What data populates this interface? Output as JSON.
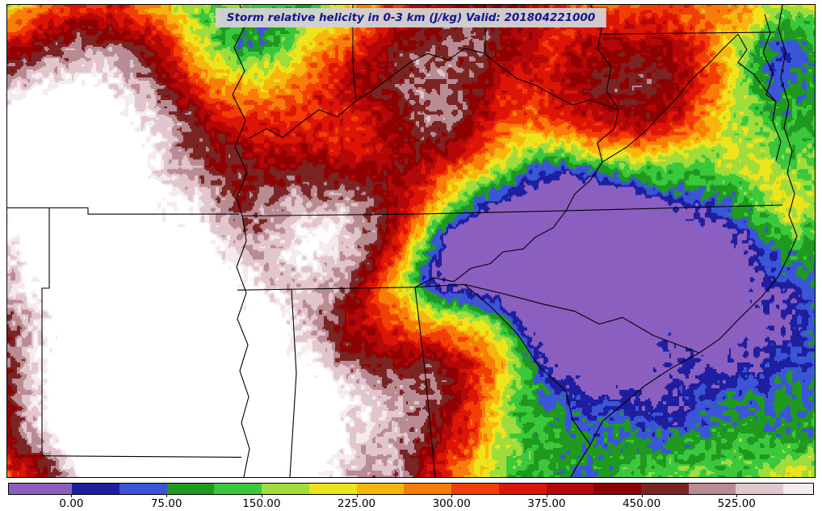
{
  "title": {
    "text": "Storm relative helicity in 0-3 km (J/kg) Valid: 201804221000"
  },
  "chart_data": {
    "type": "heatmap",
    "title": "Storm relative helicity in 0-3 km (J/kg)",
    "valid_time": "201804221000",
    "units": "J/kg",
    "variable": "storm-relative helicity 0-3 km",
    "region": "Southeastern United States: Missouri/Arkansas east to the Atlantic coast, Ohio Valley south to Alabama/Georgia, with state boundaries and coastline overlaid",
    "colorbar": {
      "orientation": "horizontal",
      "min": -50,
      "max": 586,
      "over_color": "#FFFFFF",
      "tick_values": [
        0,
        75,
        150,
        225,
        300,
        375,
        450,
        525
      ],
      "ticks": [
        {
          "value": 0,
          "label": "0.00"
        },
        {
          "value": 75,
          "label": "75.00"
        },
        {
          "value": 150,
          "label": "150.00"
        },
        {
          "value": 225,
          "label": "225.00"
        },
        {
          "value": 300,
          "label": "300.00"
        },
        {
          "value": 375,
          "label": "375.00"
        },
        {
          "value": 450,
          "label": "450.00"
        },
        {
          "value": 525,
          "label": "525.00"
        }
      ],
      "stops": [
        {
          "min": -50,
          "max": 0,
          "color": "#8A5FC0"
        },
        {
          "min": 0,
          "max": 37.5,
          "color": "#1E1EA0"
        },
        {
          "min": 37.5,
          "max": 75,
          "color": "#3A55D6"
        },
        {
          "min": 75,
          "max": 112.5,
          "color": "#1F9A1F"
        },
        {
          "min": 112.5,
          "max": 150,
          "color": "#3CC83C"
        },
        {
          "min": 150,
          "max": 187.5,
          "color": "#A0DC3C"
        },
        {
          "min": 187.5,
          "max": 225,
          "color": "#EEE41C"
        },
        {
          "min": 225,
          "max": 262.5,
          "color": "#F6B60E"
        },
        {
          "min": 262.5,
          "max": 300,
          "color": "#F87D08"
        },
        {
          "min": 300,
          "max": 337.5,
          "color": "#F23D05"
        },
        {
          "min": 337.5,
          "max": 375,
          "color": "#DD1507"
        },
        {
          "min": 375,
          "max": 412.5,
          "color": "#B40808"
        },
        {
          "min": 412.5,
          "max": 450,
          "color": "#8F0000"
        },
        {
          "min": 450,
          "max": 487.5,
          "color": "#7A2424"
        },
        {
          "min": 487.5,
          "max": 525,
          "color": "#B98B92"
        },
        {
          "min": 525,
          "max": 562.5,
          "color": "#E1C6CC"
        },
        {
          "min": 562.5,
          "max": 586,
          "color": "#F5EBEE"
        }
      ]
    },
    "notable_features": [
      "Broad swath of very high helicity (400-550+, dark red to white) over Arkansas and southern Missouri",
      "Dark red maxima over the upper Ohio Valley / Maryland-Pennsylvania region (top right)",
      "Low / negative helicity pockets (blue-purple, below 75) over east Tennessee and the western Carolinas",
      "Red band of 300+ values across middle Tennessee and Alabama/Georgia",
      "Green-to-blue moderate values (75-150) over eastern North Carolina and coastal waters"
    ],
    "field_model": {
      "base": 165,
      "noise": {
        "amp": 185,
        "freq": 4.6,
        "octaves": 5,
        "fine_amp": 40,
        "fine_freq": 150
      },
      "blobs": [
        {
          "x": 0.09,
          "y": 0.15,
          "s": 0.13,
          "a": 270
        },
        {
          "x": 0.03,
          "y": 0.35,
          "s": 0.09,
          "a": 180
        },
        {
          "x": 0.14,
          "y": 0.62,
          "s": 0.17,
          "a": 330
        },
        {
          "x": 0.21,
          "y": 0.84,
          "s": 0.1,
          "a": 300
        },
        {
          "x": 0.1,
          "y": 0.9,
          "s": 0.08,
          "a": 200
        },
        {
          "x": 0.46,
          "y": 0.13,
          "s": 0.11,
          "a": 250
        },
        {
          "x": 0.56,
          "y": 0.085,
          "s": 0.07,
          "a": 170
        },
        {
          "x": 0.82,
          "y": 0.095,
          "s": 0.12,
          "a": 290
        },
        {
          "x": 0.74,
          "y": 0.23,
          "s": 0.06,
          "a": 150
        },
        {
          "x": 0.41,
          "y": 0.46,
          "s": 0.07,
          "a": 190
        },
        {
          "x": 0.52,
          "y": 0.33,
          "s": 0.07,
          "a": 140
        },
        {
          "x": 0.42,
          "y": 0.88,
          "s": 0.13,
          "a": 240
        },
        {
          "x": 0.56,
          "y": 0.75,
          "s": 0.06,
          "a": 210
        },
        {
          "x": 0.33,
          "y": 0.97,
          "s": 0.08,
          "a": 170
        },
        {
          "x": 0.975,
          "y": 0.45,
          "s": 0.05,
          "a": 150
        },
        {
          "x": 0.63,
          "y": 0.49,
          "s": 0.09,
          "a": -280
        },
        {
          "x": 0.73,
          "y": 0.43,
          "s": 0.08,
          "a": -230
        },
        {
          "x": 0.56,
          "y": 0.53,
          "s": 0.05,
          "a": -190
        },
        {
          "x": 0.295,
          "y": 0.1,
          "s": 0.07,
          "a": -240
        },
        {
          "x": 0.43,
          "y": 0.295,
          "s": 0.055,
          "a": -180
        },
        {
          "x": 0.9,
          "y": 0.4,
          "s": 0.1,
          "a": -150
        },
        {
          "x": 0.83,
          "y": 0.62,
          "s": 0.1,
          "a": -150
        },
        {
          "x": 0.95,
          "y": 0.13,
          "s": 0.05,
          "a": -160
        },
        {
          "x": 0.5,
          "y": 0.61,
          "s": 0.05,
          "a": -130
        },
        {
          "x": 0.68,
          "y": 0.75,
          "s": 0.08,
          "a": -110
        }
      ]
    },
    "borders": {
      "stroke": "#000000",
      "width": 1.1,
      "lines": [
        {
          "name": "mississippi-river",
          "points": [
            [
              0.288,
              0
            ],
            [
              0.296,
              0.04
            ],
            [
              0.281,
              0.09
            ],
            [
              0.294,
              0.14
            ],
            [
              0.279,
              0.19
            ],
            [
              0.295,
              0.245
            ],
            [
              0.282,
              0.3
            ],
            [
              0.297,
              0.355
            ],
            [
              0.284,
              0.41
            ],
            [
              0.291,
              0.447
            ],
            [
              0.296,
              0.5
            ],
            [
              0.284,
              0.555
            ],
            [
              0.296,
              0.61
            ],
            [
              0.285,
              0.665
            ],
            [
              0.298,
              0.72
            ],
            [
              0.288,
              0.775
            ],
            [
              0.299,
              0.83
            ],
            [
              0.29,
              0.885
            ],
            [
              0.3,
              0.94
            ],
            [
              0.293,
              1.0
            ]
          ]
        },
        {
          "name": "mo-ar",
          "points": [
            [
              0,
              0.43
            ],
            [
              0.1,
              0.43
            ],
            [
              0.1,
              0.443
            ],
            [
              0.287,
              0.443
            ]
          ]
        },
        {
          "name": "ar-ok",
          "points": [
            [
              0.052,
              0.43
            ],
            [
              0.052,
              0.6
            ],
            [
              0.043,
              0.6
            ],
            [
              0.043,
              0.955
            ]
          ]
        },
        {
          "name": "ar-la",
          "points": [
            [
              0.043,
              0.955
            ],
            [
              0.29,
              0.958
            ]
          ]
        },
        {
          "name": "ky-tn",
          "points": [
            [
              0.291,
              0.447
            ],
            [
              0.5,
              0.443
            ],
            [
              0.692,
              0.436
            ]
          ]
        },
        {
          "name": "tn-ms-al",
          "points": [
            [
              0.285,
              0.604
            ],
            [
              0.505,
              0.598
            ]
          ]
        },
        {
          "name": "ms-al",
          "points": [
            [
              0.352,
              0.602
            ],
            [
              0.358,
              0.78
            ],
            [
              0.35,
              1.0
            ]
          ]
        },
        {
          "name": "al-ga",
          "points": [
            [
              0.505,
              0.598
            ],
            [
              0.517,
              0.77
            ],
            [
              0.53,
              1.0
            ]
          ]
        },
        {
          "name": "tn-nc",
          "points": [
            [
              0.505,
              0.598
            ],
            [
              0.528,
              0.578
            ],
            [
              0.553,
              0.586
            ],
            [
              0.574,
              0.558
            ],
            [
              0.598,
              0.548
            ],
            [
              0.614,
              0.523
            ],
            [
              0.639,
              0.517
            ],
            [
              0.654,
              0.492
            ],
            [
              0.676,
              0.472
            ],
            [
              0.692,
              0.436
            ]
          ]
        },
        {
          "name": "ga-nc",
          "points": [
            [
              0.505,
              0.598
            ],
            [
              0.566,
              0.592
            ]
          ]
        },
        {
          "name": "ga-sc",
          "points": [
            [
              0.566,
              0.592
            ],
            [
              0.598,
              0.638
            ],
            [
              0.632,
              0.697
            ],
            [
              0.658,
              0.765
            ],
            [
              0.692,
              0.818
            ],
            [
              0.7,
              0.878
            ],
            [
              0.722,
              0.932
            ]
          ]
        },
        {
          "name": "nc-sc",
          "points": [
            [
              0.566,
              0.592
            ],
            [
              0.615,
              0.612
            ],
            [
              0.662,
              0.633
            ],
            [
              0.703,
              0.649
            ],
            [
              0.733,
              0.676
            ],
            [
              0.762,
              0.662
            ],
            [
              0.8,
              0.7
            ],
            [
              0.857,
              0.737
            ]
          ]
        },
        {
          "name": "va-nc",
          "points": [
            [
              0.692,
              0.436
            ],
            [
              0.96,
              0.424
            ]
          ]
        },
        {
          "name": "ky-va-wv",
          "points": [
            [
              0.692,
              0.436
            ],
            [
              0.703,
              0.4
            ],
            [
              0.722,
              0.372
            ],
            [
              0.737,
              0.333
            ],
            [
              0.731,
              0.292
            ],
            [
              0.752,
              0.262
            ],
            [
              0.757,
              0.222
            ]
          ]
        },
        {
          "name": "wv-oh",
          "points": [
            [
              0.757,
              0.222
            ],
            [
              0.742,
              0.182
            ],
            [
              0.748,
              0.132
            ],
            [
              0.731,
              0.092
            ],
            [
              0.737,
              0.042
            ],
            [
              0.722,
              0.0
            ]
          ]
        },
        {
          "name": "ohio-river",
          "points": [
            [
              0.3,
              0.282
            ],
            [
              0.321,
              0.262
            ],
            [
              0.341,
              0.281
            ],
            [
              0.362,
              0.252
            ],
            [
              0.386,
              0.222
            ],
            [
              0.409,
              0.237
            ],
            [
              0.432,
              0.203
            ],
            [
              0.452,
              0.182
            ],
            [
              0.472,
              0.156
            ],
            [
              0.499,
              0.122
            ],
            [
              0.521,
              0.103
            ],
            [
              0.546,
              0.117
            ],
            [
              0.566,
              0.092
            ],
            [
              0.59,
              0.102
            ],
            [
              0.611,
              0.131
            ],
            [
              0.631,
              0.156
            ],
            [
              0.655,
              0.171
            ],
            [
              0.676,
              0.191
            ],
            [
              0.7,
              0.212
            ],
            [
              0.721,
              0.201
            ],
            [
              0.757,
              0.222
            ]
          ]
        },
        {
          "name": "il-in",
          "points": [
            [
              0.428,
              0.0
            ],
            [
              0.428,
              0.12
            ],
            [
              0.432,
              0.203
            ]
          ]
        },
        {
          "name": "in-oh",
          "points": [
            [
              0.592,
              0.0
            ],
            [
              0.592,
              0.102
            ]
          ]
        },
        {
          "name": "va-wv",
          "points": [
            [
              0.737,
              0.333
            ],
            [
              0.768,
              0.3
            ],
            [
              0.79,
              0.268
            ],
            [
              0.808,
              0.235
            ],
            [
              0.83,
              0.196
            ],
            [
              0.845,
              0.162
            ],
            [
              0.868,
              0.126
            ],
            [
              0.887,
              0.092
            ],
            [
              0.905,
              0.062
            ]
          ]
        },
        {
          "name": "md-pa",
          "points": [
            [
              0.733,
              0.062
            ],
            [
              0.95,
              0.058
            ]
          ]
        },
        {
          "name": "potomac",
          "points": [
            [
              0.905,
              0.062
            ],
            [
              0.916,
              0.095
            ],
            [
              0.905,
              0.122
            ],
            [
              0.925,
              0.148
            ],
            [
              0.938,
              0.178
            ],
            [
              0.952,
              0.205
            ]
          ]
        },
        {
          "name": "chesapeake-bay",
          "points": [
            [
              0.938,
              0.02
            ],
            [
              0.945,
              0.06
            ],
            [
              0.936,
              0.1
            ],
            [
              0.948,
              0.146
            ],
            [
              0.94,
              0.19
            ],
            [
              0.952,
              0.205
            ],
            [
              0.948,
              0.247
            ],
            [
              0.958,
              0.29
            ],
            [
              0.952,
              0.33
            ]
          ]
        },
        {
          "name": "atlantic-coast",
          "points": [
            [
              0.96,
              0.0
            ],
            [
              0.955,
              0.05
            ],
            [
              0.964,
              0.1
            ],
            [
              0.958,
              0.155
            ],
            [
              0.968,
              0.21
            ],
            [
              0.962,
              0.26
            ],
            [
              0.972,
              0.31
            ],
            [
              0.966,
              0.355
            ],
            [
              0.975,
              0.4
            ],
            [
              0.968,
              0.445
            ],
            [
              0.978,
              0.49
            ],
            [
              0.968,
              0.53
            ],
            [
              0.955,
              0.575
            ],
            [
              0.935,
              0.617
            ],
            [
              0.908,
              0.662
            ],
            [
              0.882,
              0.708
            ],
            [
              0.857,
              0.737
            ],
            [
              0.822,
              0.77
            ],
            [
              0.79,
              0.806
            ],
            [
              0.763,
              0.845
            ],
            [
              0.737,
              0.882
            ],
            [
              0.722,
              0.932
            ],
            [
              0.706,
              0.975
            ],
            [
              0.698,
              1.0
            ]
          ]
        }
      ]
    }
  }
}
